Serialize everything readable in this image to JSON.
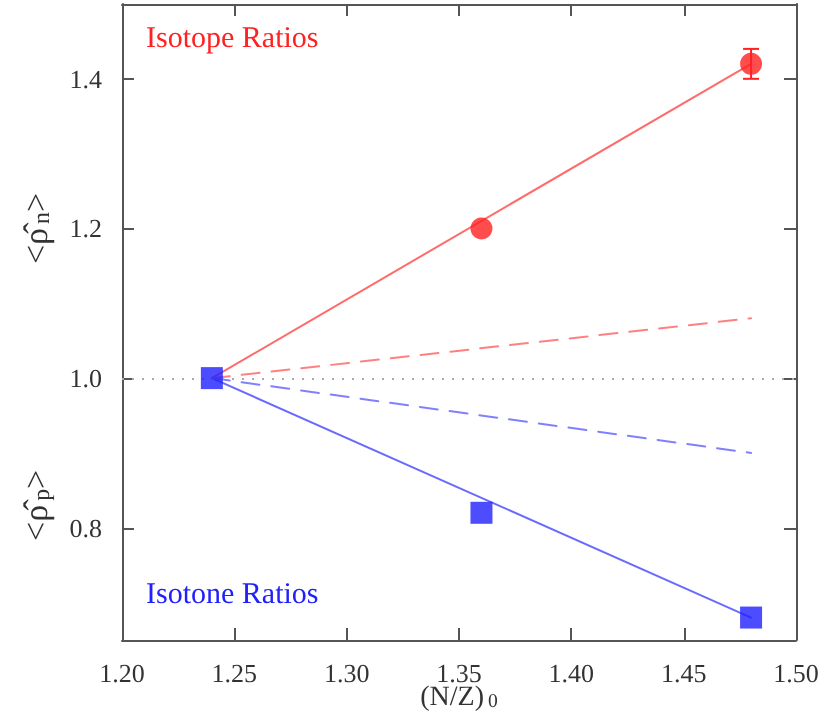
{
  "chart_data": {
    "type": "scatter",
    "xlabel": "(N/Z)$_{0}$",
    "ylabel": "<ρ̂$_{n}$>",
    "annotations": [
      "<ρ̂$_{p}$>"
    ],
    "xlim": [
      1.2,
      1.5
    ],
    "xticks": [
      {
        "value": 1.2,
        "label": "1.20"
      },
      {
        "value": 1.25,
        "label": "1.25"
      },
      {
        "value": 1.3,
        "label": "1.30"
      },
      {
        "value": 1.35,
        "label": "1.35"
      },
      {
        "value": 1.4,
        "label": "1.40"
      },
      {
        "value": 1.45,
        "label": "1.45"
      },
      {
        "value": 1.5,
        "label": "1.50"
      }
    ],
    "ylim": [
      0.65,
      1.5
    ],
    "yticks": [
      0.8,
      {
        "value": 1.0,
        "label": "1.0"
      },
      1.2,
      1.4
    ],
    "grid": false,
    "legend": false,
    "series": [
      {
        "type": "line",
        "color": "#ff6a6a",
        "x": [
          1.24,
          1.48
        ],
        "values": [
          1.0,
          1.42
        ],
        "marker": "none",
        "line_style": "solid"
      },
      {
        "type": "line",
        "color": "#6a6aff",
        "x": [
          1.24,
          1.48
        ],
        "values": [
          1.0,
          0.68
        ],
        "marker": "none",
        "line_style": "solid"
      },
      {
        "type": "line",
        "color": "#ff8080",
        "x": [
          1.24,
          1.48
        ],
        "values": [
          1.0,
          1.08
        ],
        "marker": "none",
        "line_style": "dashed"
      },
      {
        "type": "line",
        "color": "#8080ff",
        "x": [
          1.24,
          1.48
        ],
        "values": [
          1.0,
          0.9
        ],
        "marker": "none",
        "line_style": "dashed"
      },
      {
        "name": "Isotope Ratios",
        "color": "#ff2020",
        "x": [
          1.36,
          1.48
        ],
        "values": [
          1.2,
          1.42
        ],
        "errors": [
          null,
          0.02
        ],
        "marker": "circle"
      },
      {
        "name": "Isotone Ratios",
        "color": "#2020ff",
        "x": [
          1.24,
          1.36,
          1.48
        ],
        "values": [
          1.0,
          0.82,
          0.68
        ],
        "marker": "square"
      }
    ],
    "ref_lines": [
      {
        "axis": "y",
        "value": 1.0,
        "color": "#aaaaaa",
        "line_style": "dotted"
      }
    ]
  }
}
